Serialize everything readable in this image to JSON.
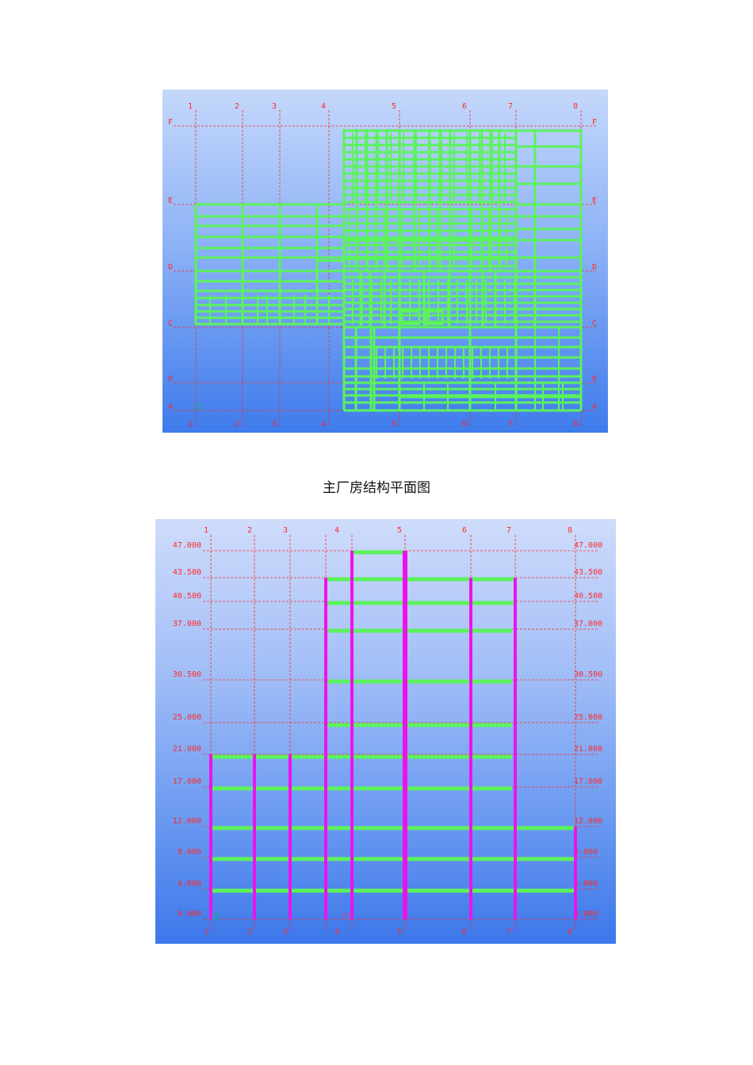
{
  "plan": {
    "axis_numbers": [
      "1",
      "2",
      "3",
      "4",
      "5",
      "6",
      "7",
      "8"
    ],
    "axis_letters": [
      "F",
      "E",
      "D",
      "C",
      "D",
      "A"
    ]
  },
  "caption": "主厂房结构平面图",
  "elevation": {
    "axis_numbers": [
      "1",
      "2",
      "3",
      "4",
      "5",
      "6",
      "7",
      "8"
    ],
    "levels": [
      "47.000",
      "43.500",
      "40.500",
      "37.000",
      "30.500",
      "25.000",
      "21.000",
      "17.000",
      "12.000",
      "8.000",
      "4.000",
      "0.000"
    ]
  },
  "colors": {
    "beam": "#5cf25c",
    "column": "#ee11ee",
    "grid": "#ff2a2a"
  }
}
